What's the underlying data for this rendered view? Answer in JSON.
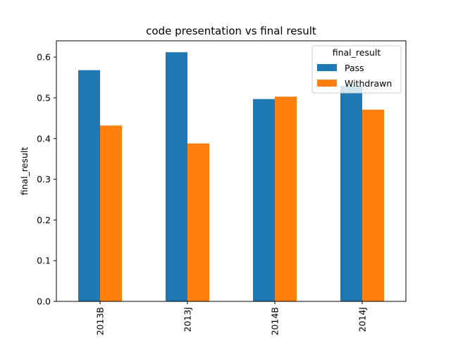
{
  "chart_data": {
    "type": "bar",
    "title": "code presentation vs final result",
    "xlabel": "",
    "ylabel": "final_result",
    "categories": [
      "2013B",
      "2013J",
      "2014B",
      "2014J"
    ],
    "series": [
      {
        "name": "Pass",
        "color": "#1f77b4",
        "values": [
          0.568,
          0.612,
          0.497,
          0.529
        ]
      },
      {
        "name": "Withdrawn",
        "color": "#ff7f0e",
        "values": [
          0.432,
          0.388,
          0.503,
          0.471
        ]
      }
    ],
    "ylim": [
      0,
      0.64
    ],
    "yticks": [
      "0.0",
      "0.1",
      "0.2",
      "0.3",
      "0.4",
      "0.5",
      "0.6"
    ],
    "grid": false,
    "legend": {
      "title": "final_result",
      "placement": "top-right"
    }
  }
}
